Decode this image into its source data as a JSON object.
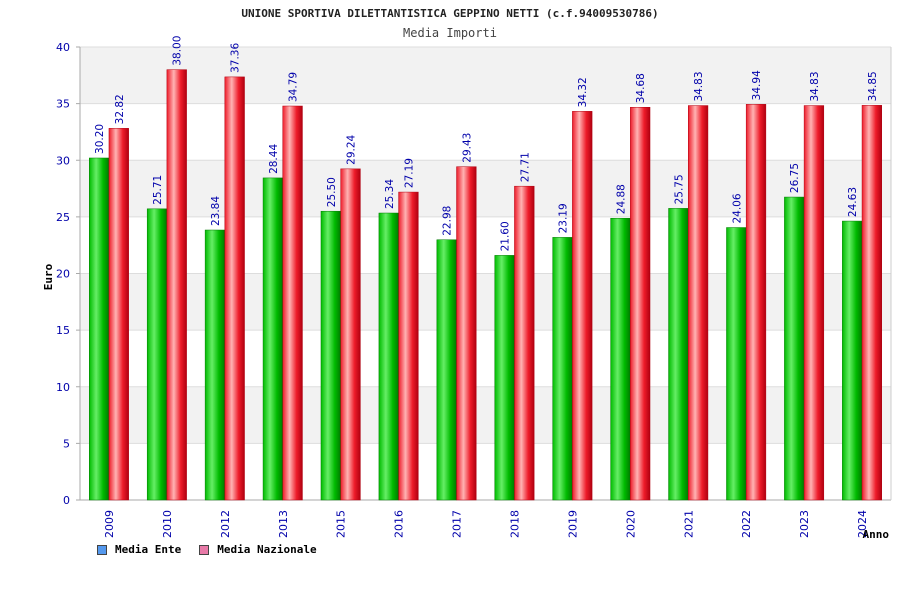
{
  "colors": {
    "ente_light": "#66ee66",
    "ente_mid": "#00bb00",
    "ente_dark": "#007a00",
    "naz_light": "#ffb3b3",
    "naz_mid": "#ee1c2a",
    "naz_dark": "#b00010",
    "axis_label": "#0000aa",
    "legend_ente": "#5599ee",
    "legend_naz": "#e87aa8"
  },
  "chart_data": {
    "type": "bar",
    "title": "UNIONE SPORTIVA DILETTANTISTICA GEPPINO NETTI (c.f.94009530786)",
    "subtitle": "Media Importi",
    "xlabel": "Anno",
    "ylabel": "Euro",
    "ylim": [
      0,
      40
    ],
    "yticks": [
      0,
      5,
      10,
      15,
      20,
      25,
      30,
      35,
      40
    ],
    "categories": [
      "2009",
      "2010",
      "2012",
      "2013",
      "2015",
      "2016",
      "2017",
      "2018",
      "2019",
      "2020",
      "2021",
      "2022",
      "2023",
      "2024"
    ],
    "series": [
      {
        "name": "Media Ente",
        "values": [
          30.2,
          25.71,
          23.84,
          28.44,
          25.5,
          25.34,
          22.98,
          21.6,
          23.19,
          24.88,
          25.75,
          24.06,
          26.75,
          24.63
        ],
        "labels": [
          "30.20",
          "25.71",
          "23.84",
          "28.44",
          "25.50",
          "25.34",
          "22.98",
          "21.60",
          "23.19",
          "24.88",
          "25.75",
          "24.06",
          "26.75",
          "24.63"
        ]
      },
      {
        "name": "Media Nazionale",
        "values": [
          32.82,
          38.0,
          37.36,
          34.79,
          29.24,
          27.19,
          29.43,
          27.71,
          34.32,
          34.68,
          34.83,
          34.94,
          34.83,
          34.85
        ],
        "labels": [
          "32.82",
          "38.00",
          "37.36",
          "34.79",
          "29.24",
          "27.19",
          "29.43",
          "27.71",
          "34.32",
          "34.68",
          "34.83",
          "34.94",
          "34.83",
          "34.85"
        ]
      }
    ],
    "grid": true,
    "legend_position": "bottom-left"
  }
}
